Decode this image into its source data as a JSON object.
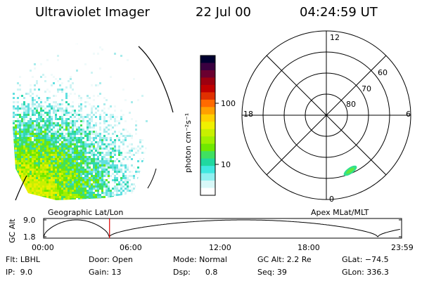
{
  "header": {
    "title": "Ultraviolet Imager",
    "date": "22 Jul 00",
    "time": "04:24:59 UT"
  },
  "colorbar": {
    "label": "photon cm⁻²s⁻¹",
    "ticks": [
      "100",
      "10"
    ],
    "colors": [
      "#000030",
      "#3a0040",
      "#6a0030",
      "#9c0010",
      "#c00000",
      "#e03000",
      "#ff6a00",
      "#ffa000",
      "#ffd000",
      "#f0f000",
      "#c8f000",
      "#a0f000",
      "#70e800",
      "#40e060",
      "#20d8a0",
      "#40e8e0",
      "#90f0f0",
      "#d8f8f8",
      "#ffffff"
    ]
  },
  "panels": {
    "left_caption": "Geographic Lat/Lon",
    "right_caption": "Apex MLat/MLT"
  },
  "polar": {
    "mlt_labels": [
      "12",
      "18",
      "6",
      "0"
    ],
    "lat_labels": [
      "60",
      "70",
      "80"
    ]
  },
  "altitude_plot": {
    "ylabel": "GC Alt",
    "yticks": [
      "9.0",
      "1.8"
    ],
    "xticks": [
      "00:00",
      "06:00",
      "12:00",
      "18:00",
      "23:59"
    ],
    "marker_time_hours": 4.42
  },
  "info": {
    "flt": "Flt: LBHL",
    "ip": "IP:  9.0",
    "door": "Door: Open",
    "gain": "Gain: 13",
    "mode": "Mode: Normal",
    "dsp": "Dsp:      0.8",
    "gcalt": "GC Alt: 2.2 Re",
    "seq": "Seq: 39",
    "glat": "GLat: −74.5",
    "glon": "GLon: 336.3"
  }
}
